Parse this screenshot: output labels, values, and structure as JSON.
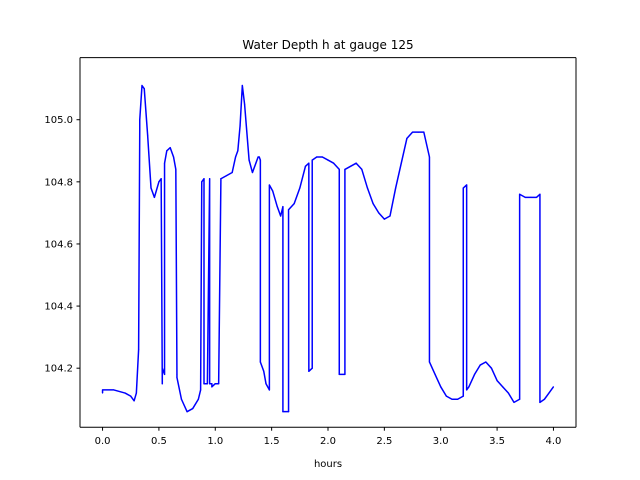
{
  "chart_data": {
    "type": "line",
    "title": "Water Depth h at gauge 125",
    "xlabel": "hours",
    "ylabel": "",
    "xlim": [
      -0.2,
      4.2
    ],
    "ylim": [
      104.01,
      105.2
    ],
    "grid": false,
    "xticks": [
      0.0,
      0.5,
      1.0,
      1.5,
      2.0,
      2.5,
      3.0,
      3.5,
      4.0
    ],
    "xtick_labels": [
      "0.0",
      "0.5",
      "1.0",
      "1.5",
      "2.0",
      "2.5",
      "3.0",
      "3.5",
      "4.0"
    ],
    "yticks": [
      104.2,
      104.4,
      104.6,
      104.8,
      105.0
    ],
    "ytick_labels": [
      "104.2",
      "104.4",
      "104.6",
      "104.8",
      "105.0"
    ],
    "series": [
      {
        "color": "#0000ff",
        "x": [
          0.0,
          0.0,
          0.1,
          0.2,
          0.25,
          0.28,
          0.3,
          0.32,
          0.33,
          0.33,
          0.35,
          0.37,
          0.4,
          0.43,
          0.46,
          0.5,
          0.52,
          0.53,
          0.53,
          0.55,
          0.55,
          0.57,
          0.6,
          0.63,
          0.65,
          0.66,
          0.66,
          0.7,
          0.75,
          0.8,
          0.85,
          0.87,
          0.88,
          0.9,
          0.9,
          0.93,
          0.95,
          0.95,
          0.97,
          0.97,
          1.0,
          1.03,
          1.05,
          1.05,
          1.1,
          1.15,
          1.18,
          1.2,
          1.22,
          1.24,
          1.26,
          1.3,
          1.33,
          1.36,
          1.38,
          1.39,
          1.4,
          1.4,
          1.43,
          1.45,
          1.48,
          1.48,
          1.51,
          1.55,
          1.58,
          1.6,
          1.6,
          1.65,
          1.65,
          1.7,
          1.75,
          1.8,
          1.83,
          1.83,
          1.86,
          1.86,
          1.9,
          1.95,
          2.0,
          2.05,
          2.1,
          2.1,
          2.15,
          2.15,
          2.2,
          2.25,
          2.3,
          2.35,
          2.4,
          2.45,
          2.5,
          2.55,
          2.6,
          2.65,
          2.7,
          2.75,
          2.8,
          2.85,
          2.9,
          2.9,
          2.95,
          3.0,
          3.05,
          3.1,
          3.15,
          3.2,
          3.2,
          3.23,
          3.23,
          3.25,
          3.3,
          3.35,
          3.4,
          3.45,
          3.5,
          3.55,
          3.6,
          3.65,
          3.7,
          3.7,
          3.75,
          3.8,
          3.85,
          3.88,
          3.88,
          3.92,
          3.96,
          4.0
        ],
        "y": [
          104.12,
          104.13,
          104.13,
          104.12,
          104.11,
          104.095,
          104.12,
          104.26,
          104.97,
          105.0,
          105.11,
          105.1,
          104.95,
          104.78,
          104.75,
          104.8,
          104.81,
          104.15,
          104.2,
          104.18,
          104.86,
          104.9,
          104.91,
          104.88,
          104.84,
          104.18,
          104.17,
          104.1,
          104.06,
          104.07,
          104.1,
          104.13,
          104.8,
          104.81,
          104.15,
          104.15,
          104.81,
          104.15,
          104.15,
          104.14,
          104.15,
          104.15,
          104.81,
          104.81,
          104.82,
          104.83,
          104.88,
          104.9,
          104.98,
          105.11,
          105.05,
          104.87,
          104.83,
          104.86,
          104.88,
          104.88,
          104.87,
          104.22,
          104.19,
          104.15,
          104.13,
          104.79,
          104.77,
          104.72,
          104.69,
          104.72,
          104.06,
          104.06,
          104.71,
          104.73,
          104.78,
          104.85,
          104.86,
          104.19,
          104.2,
          104.87,
          104.88,
          104.88,
          104.87,
          104.86,
          104.84,
          104.18,
          104.18,
          104.84,
          104.85,
          104.86,
          104.84,
          104.78,
          104.73,
          104.7,
          104.68,
          104.69,
          104.78,
          104.86,
          104.94,
          104.96,
          104.96,
          104.96,
          104.88,
          104.22,
          104.18,
          104.14,
          104.11,
          104.1,
          104.1,
          104.11,
          104.78,
          104.79,
          104.13,
          104.14,
          104.18,
          104.21,
          104.22,
          104.2,
          104.16,
          104.14,
          104.12,
          104.09,
          104.1,
          104.76,
          104.75,
          104.75,
          104.75,
          104.76,
          104.09,
          104.1,
          104.12,
          104.14
        ]
      }
    ]
  }
}
